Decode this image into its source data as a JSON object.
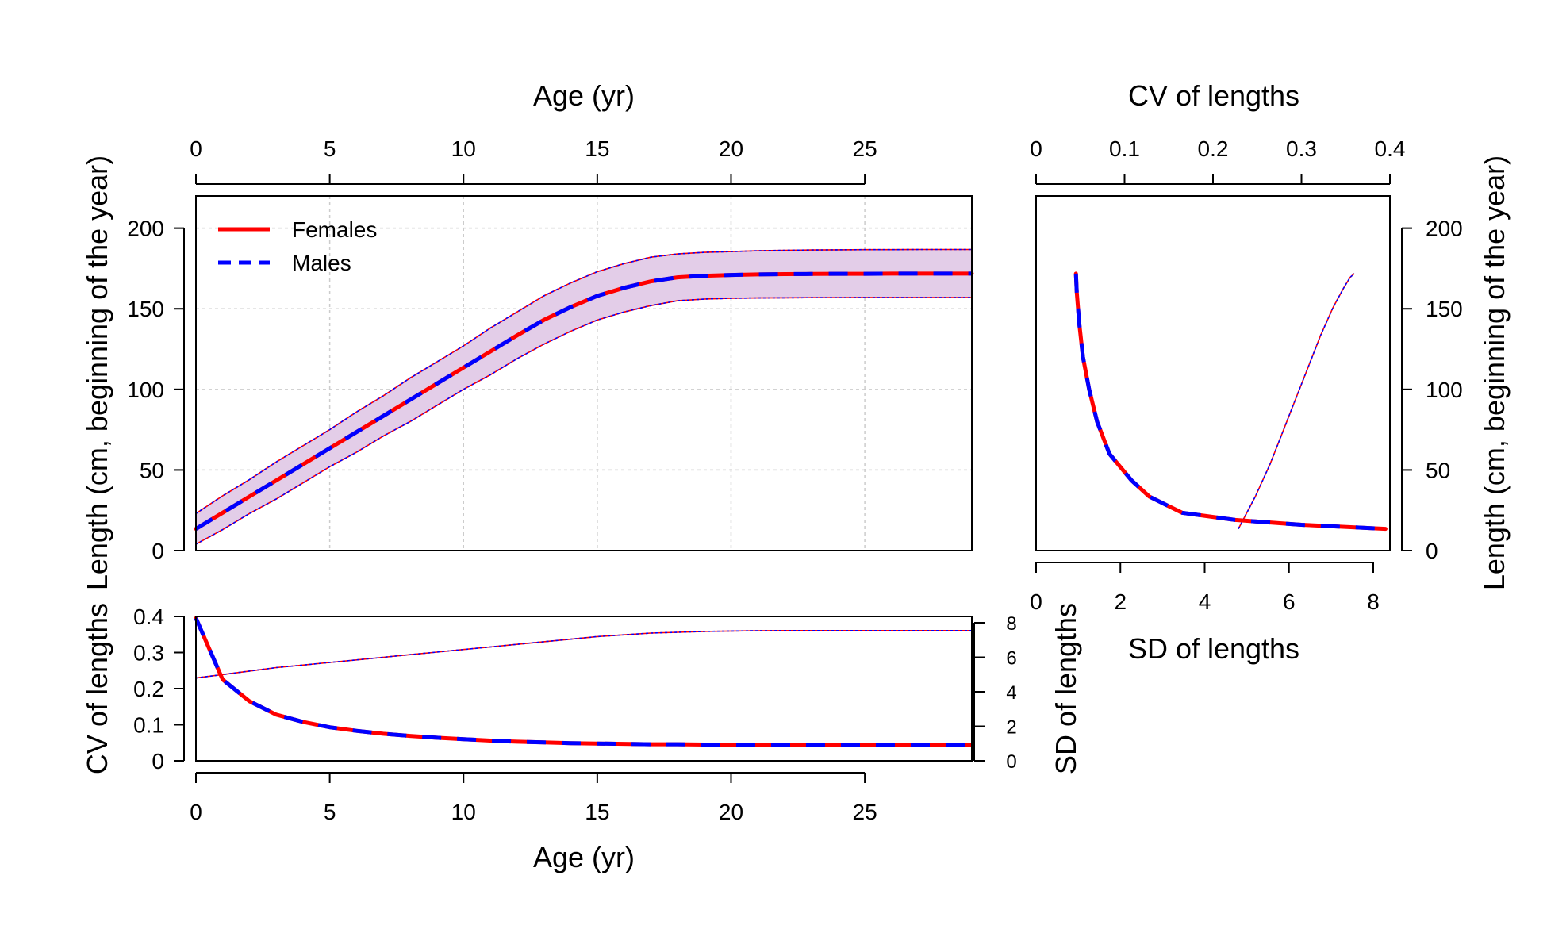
{
  "chart_data": [
    {
      "id": "growth",
      "type": "line",
      "xlabel": "Age (yr)",
      "ylabel": "Length (cm, beginning of the year)",
      "xlim": [
        0,
        29
      ],
      "ylim": [
        0,
        220
      ],
      "xticks": [
        "0",
        "5",
        "10",
        "15",
        "20",
        "25"
      ],
      "yticks": [
        "0",
        "50",
        "100",
        "150",
        "200"
      ],
      "grid": true,
      "legend_position": "top-left",
      "legend": [
        {
          "label": "Females",
          "color": "#FF0000",
          "style": "solid"
        },
        {
          "label": "Males",
          "color": "#0000FF",
          "style": "dashed"
        }
      ],
      "x": [
        0,
        1,
        2,
        3,
        4,
        5,
        6,
        7,
        8,
        9,
        10,
        11,
        12,
        13,
        14,
        15,
        16,
        17,
        18,
        19,
        20,
        21,
        22,
        23,
        24,
        25,
        26,
        27,
        28,
        29
      ],
      "series": [
        {
          "name": "Females",
          "color": "#FF0000",
          "style": "solid",
          "values": [
            13.5,
            23.5,
            33.5,
            43.5,
            53.5,
            63.5,
            73.5,
            83.5,
            93.5,
            103.5,
            113.5,
            123.5,
            133.5,
            143,
            151,
            158,
            163,
            167,
            169.5,
            170.5,
            171,
            171.3,
            171.5,
            171.6,
            171.7,
            171.7,
            171.8,
            171.8,
            171.8,
            171.8
          ]
        },
        {
          "name": "Males",
          "color": "#0000FF",
          "style": "dashed",
          "values": [
            13.5,
            23.5,
            33.5,
            43.5,
            53.5,
            63.5,
            73.5,
            83.5,
            93.5,
            103.5,
            113.5,
            123.5,
            133.5,
            143,
            151,
            158,
            163,
            167,
            169.5,
            170.5,
            171,
            171.3,
            171.5,
            171.6,
            171.7,
            171.7,
            171.8,
            171.8,
            171.8,
            171.8
          ]
        }
      ],
      "interval_upper": [
        23,
        34,
        44,
        55,
        65,
        75,
        86,
        96,
        107,
        117,
        127,
        138,
        148,
        158,
        166,
        173,
        178,
        182,
        184,
        185,
        185.5,
        186,
        186.3,
        186.5,
        186.6,
        186.7,
        186.7,
        186.8,
        186.8,
        186.8
      ],
      "interval_lower": [
        4,
        13,
        23,
        32,
        42,
        52,
        61,
        71,
        80,
        90,
        100,
        109,
        119,
        128,
        136,
        143,
        148,
        152,
        155,
        156,
        156.5,
        156.7,
        156.8,
        156.9,
        156.9,
        157,
        157,
        157,
        157,
        157
      ],
      "interval_color": "#E3CDE8"
    },
    {
      "id": "cv_sd",
      "type": "line",
      "xlabel": "Age (yr)",
      "ylabel": "CV of lengths",
      "ylabel_right": "SD of lengths",
      "xlim": [
        0,
        29
      ],
      "ylim": [
        0,
        0.4
      ],
      "ylim_right": [
        0,
        8
      ],
      "xticks": [
        "0",
        "5",
        "10",
        "15",
        "20",
        "25"
      ],
      "yticks": [
        "0",
        "0.1",
        "0.2",
        "0.3",
        "0.4"
      ],
      "yticks_right": [
        "0",
        "2",
        "4",
        "6",
        "8"
      ],
      "x": [
        0,
        1,
        2,
        3,
        4,
        5,
        6,
        7,
        8,
        9,
        10,
        11,
        12,
        13,
        14,
        15,
        16,
        17,
        18,
        19,
        20,
        21,
        22,
        23,
        24,
        25,
        26,
        27,
        28,
        29
      ],
      "series": [
        {
          "name": "Females",
          "axis": "left",
          "color": "#FF0000",
          "style": "solid",
          "values": [
            0.395,
            0.225,
            0.165,
            0.128,
            0.108,
            0.093,
            0.083,
            0.075,
            0.069,
            0.064,
            0.06,
            0.056,
            0.053,
            0.051,
            0.049,
            0.048,
            0.047,
            0.046,
            0.046,
            0.045,
            0.045,
            0.045,
            0.045,
            0.045,
            0.045,
            0.045,
            0.045,
            0.045,
            0.045,
            0.045
          ]
        },
        {
          "name": "Males",
          "axis": "left",
          "color": "#0000FF",
          "style": "dashed",
          "values": [
            0.395,
            0.225,
            0.165,
            0.128,
            0.108,
            0.093,
            0.083,
            0.075,
            0.069,
            0.064,
            0.06,
            0.056,
            0.053,
            0.051,
            0.049,
            0.048,
            0.047,
            0.046,
            0.046,
            0.045,
            0.045,
            0.045,
            0.045,
            0.045,
            0.045,
            0.045,
            0.045,
            0.045,
            0.045,
            0.045
          ]
        },
        {
          "axis": "right",
          "color": "#0000FF",
          "style": "dotted",
          "values": [
            4.8,
            5.0,
            5.2,
            5.4,
            5.55,
            5.7,
            5.85,
            6.0,
            6.15,
            6.3,
            6.45,
            6.6,
            6.75,
            6.9,
            7.05,
            7.2,
            7.3,
            7.4,
            7.45,
            7.5,
            7.52,
            7.54,
            7.55,
            7.55,
            7.55,
            7.55,
            7.55,
            7.55,
            7.55,
            7.55
          ]
        }
      ]
    },
    {
      "id": "length_vs_variability",
      "type": "line",
      "xlabel": "SD of lengths",
      "xlabel_top": "CV of lengths",
      "ylabel": "Length (cm, beginning of the year)",
      "xlim": [
        0,
        8.4
      ],
      "xlim_top": [
        0,
        0.4
      ],
      "ylim": [
        0,
        220
      ],
      "xticks": [
        "0",
        "2",
        "4",
        "6",
        "8"
      ],
      "xticks_top": [
        "0",
        "0.1",
        "0.2",
        "0.3",
        "0.4"
      ],
      "yticks": [
        "0",
        "50",
        "100",
        "150",
        "200"
      ],
      "series": [
        {
          "name": "Females",
          "axis": "top",
          "color": "#FF0000",
          "style": "solid",
          "points": [
            [
              0.045,
              171.8
            ],
            [
              0.046,
              160
            ],
            [
              0.049,
              140
            ],
            [
              0.053,
              120
            ],
            [
              0.06,
              100
            ],
            [
              0.069,
              80
            ],
            [
              0.083,
              60
            ],
            [
              0.108,
              43.5
            ],
            [
              0.128,
              33.5
            ],
            [
              0.165,
              23.5
            ],
            [
              0.225,
              19
            ],
            [
              0.3,
              16
            ],
            [
              0.395,
              13.5
            ]
          ]
        },
        {
          "name": "Males",
          "axis": "top",
          "color": "#0000FF",
          "style": "dashed",
          "points": [
            [
              0.045,
              171.8
            ],
            [
              0.046,
              160
            ],
            [
              0.049,
              140
            ],
            [
              0.053,
              120
            ],
            [
              0.06,
              100
            ],
            [
              0.069,
              80
            ],
            [
              0.083,
              60
            ],
            [
              0.108,
              43.5
            ],
            [
              0.128,
              33.5
            ],
            [
              0.165,
              23.5
            ],
            [
              0.225,
              19
            ],
            [
              0.3,
              16
            ],
            [
              0.395,
              13.5
            ]
          ]
        },
        {
          "axis": "bottom",
          "color": "#0000FF",
          "style": "dotted",
          "points": [
            [
              4.8,
              13.5
            ],
            [
              5.2,
              33.5
            ],
            [
              5.55,
              53.5
            ],
            [
              5.85,
              73.5
            ],
            [
              6.15,
              93.5
            ],
            [
              6.45,
              113.5
            ],
            [
              6.75,
              133.5
            ],
            [
              7.05,
              151
            ],
            [
              7.3,
              163
            ],
            [
              7.45,
              169.5
            ],
            [
              7.55,
              171.8
            ]
          ]
        }
      ]
    }
  ]
}
